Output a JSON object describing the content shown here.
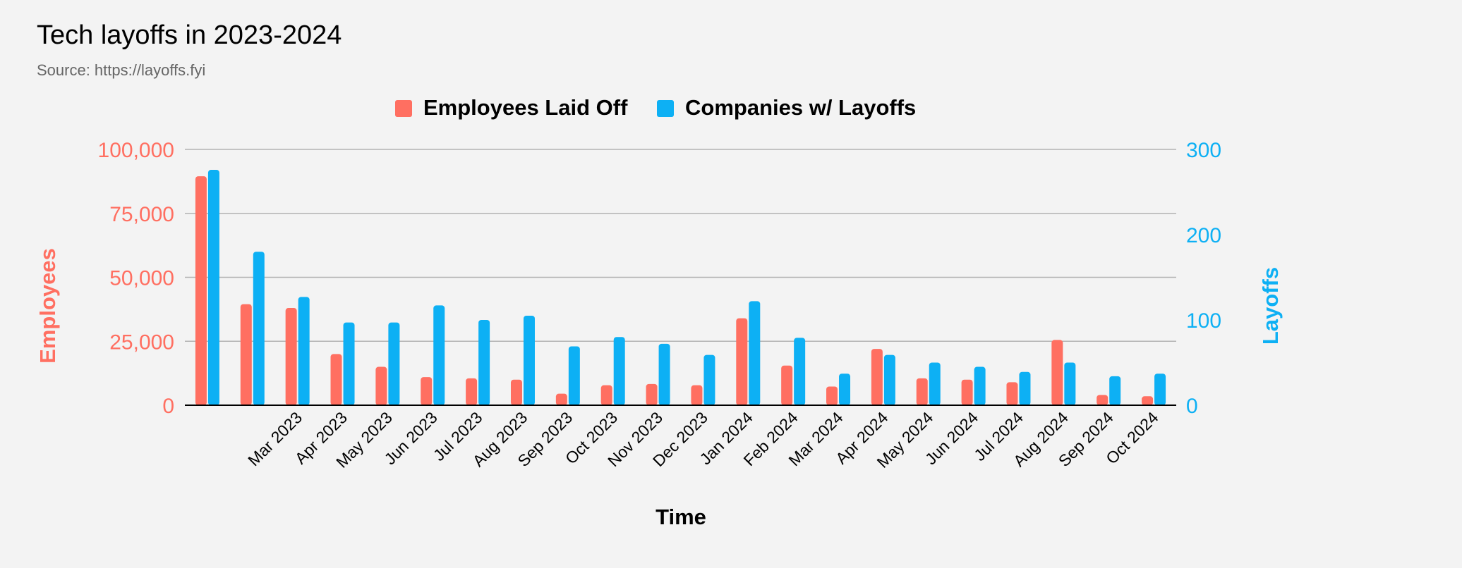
{
  "chart_data": {
    "type": "bar",
    "title": "Tech layoffs in 2023-2024",
    "subtitle": "Source: https://layoffs.fyi",
    "xlabel": "Time",
    "categories": [
      "",
      "",
      "Mar 2023",
      "Apr 2023",
      "May 2023",
      "Jun 2023",
      "Jul 2023",
      "Aug 2023",
      "Sep 2023",
      "Oct 2023",
      "Nov 2023",
      "Dec 2023",
      "Jan 2024",
      "Feb 2024",
      "Mar 2024",
      "Apr 2024",
      "May 2024",
      "Jun 2024",
      "Jul 2024",
      "Aug 2024",
      "Sep 2024",
      "Oct 2024"
    ],
    "left_axis": {
      "label": "Employees",
      "ylim": [
        0,
        100000
      ],
      "ticks": [
        0,
        25000,
        50000,
        75000,
        100000
      ],
      "tick_labels": [
        "0",
        "25,000",
        "50,000",
        "75,000",
        "100,000"
      ]
    },
    "right_axis": {
      "label": "Layoffs",
      "ylim": [
        0,
        300
      ],
      "ticks": [
        0,
        100,
        200,
        300
      ],
      "tick_labels": [
        "0",
        "100",
        "200",
        "300"
      ]
    },
    "series": [
      {
        "name": "Employees Laid Off",
        "axis": "left",
        "color": "#ff6f61",
        "values": [
          89500,
          39500,
          38000,
          20000,
          15000,
          11000,
          10500,
          10000,
          4500,
          7800,
          8300,
          7800,
          34000,
          15500,
          7300,
          22000,
          10500,
          10000,
          9000,
          25500,
          4000,
          3500
        ]
      },
      {
        "name": "Companies w/ Layoffs",
        "axis": "right",
        "color": "#0db0f4",
        "values": [
          276,
          180,
          127,
          97,
          97,
          117,
          100,
          105,
          69,
          80,
          72,
          59,
          122,
          79,
          37,
          59,
          50,
          45,
          39,
          50,
          34,
          37
        ]
      }
    ],
    "grid": true,
    "legend_position": "top-center",
    "colors": {
      "employees": "#ff6f61",
      "companies": "#0db0f4",
      "grid": "#b3b3b3",
      "axis_line": "#000000",
      "text": "#000000",
      "subtitle": "#666666"
    }
  }
}
